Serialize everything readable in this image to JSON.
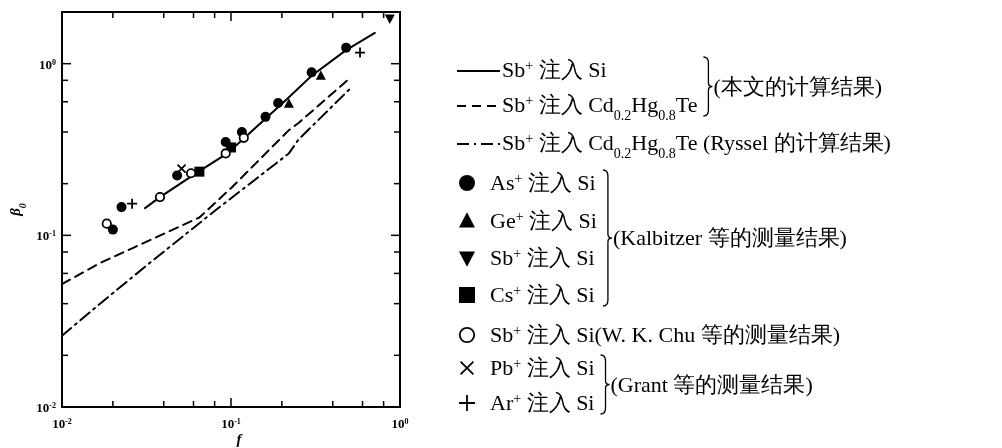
{
  "chart_data": {
    "type": "scatter",
    "xlabel": "f",
    "ylabel": "β$_{0}$",
    "log": "xy",
    "legend": "right",
    "grid": false,
    "xlim": [
      0.01,
      1
    ],
    "ylim": [
      0.01,
      2
    ],
    "xticks": [
      {
        "value": 0.01,
        "label": "10$^{-2}$"
      },
      {
        "value": 0.02,
        "label": null
      },
      {
        "value": 0.04,
        "label": null
      },
      {
        "value": 0.06,
        "label": null
      },
      {
        "value": 0.08,
        "label": null
      },
      {
        "value": 0.1,
        "label": "10$^{-1}$"
      },
      {
        "value": 0.2,
        "label": null
      },
      {
        "value": 0.4,
        "label": null
      },
      {
        "value": 0.6,
        "label": null
      },
      {
        "value": 0.8,
        "label": null
      },
      {
        "value": 1,
        "label": "10$^{0}$"
      }
    ],
    "yticks": [
      {
        "value": 0.01,
        "label": "10$^{-2}$"
      },
      {
        "value": 0.02,
        "label": null
      },
      {
        "value": 0.04,
        "label": null
      },
      {
        "value": 0.06,
        "label": null
      },
      {
        "value": 0.08,
        "label": null
      },
      {
        "value": 0.1,
        "label": "10$^{-1}$"
      },
      {
        "value": 0.2,
        "label": null
      },
      {
        "value": 0.4,
        "label": null
      },
      {
        "value": 0.6,
        "label": null
      },
      {
        "value": 0.8,
        "label": null
      },
      {
        "value": 1,
        "label": "10$^{0}$"
      }
    ],
    "series": [
      {
        "name": "Sb$^{+}$ 注入 Si",
        "type": "line",
        "line_style": "solid",
        "marker": "none",
        "color": "#000000",
        "x": [
          0.031,
          0.038,
          0.06,
          0.095,
          0.21,
          0.3,
          0.48,
          0.71
        ],
        "values": [
          0.144,
          0.167,
          0.225,
          0.3,
          0.61,
          0.85,
          1.2,
          1.51
        ]
      },
      {
        "name": "Sb$^{+}$ 注入 Cd$_{0.2}$Hg$_{0.8}$Te",
        "type": "line",
        "line_style": "dashed",
        "marker": "none",
        "color": "#000000",
        "x": [
          0.01,
          0.0168,
          0.026,
          0.065,
          0.101,
          0.22,
          0.25,
          0.51
        ],
        "values": [
          0.052,
          0.069,
          0.084,
          0.127,
          0.19,
          0.41,
          0.45,
          0.83
        ]
      },
      {
        "name": "Sb$^{+}$ 注入 Cd$_{0.2}$Hg$_{0.8}$Te (Ryssel 的计算结果)",
        "type": "line",
        "line_style": "dashdot",
        "marker": "none",
        "color": "#000000",
        "x": [
          0.01,
          0.0168,
          0.033,
          0.081,
          0.22,
          0.25,
          0.51
        ],
        "values": [
          0.026,
          0.04,
          0.069,
          0.14,
          0.3,
          0.36,
          0.72
        ]
      },
      {
        "name": "As$^{+}$ 注入 Si",
        "marker": "circle",
        "color": "#000000",
        "x": [
          0.02,
          0.0225,
          0.048,
          0.093,
          0.116,
          0.16,
          0.19,
          0.3,
          0.48
        ],
        "values": [
          0.108,
          0.146,
          0.223,
          0.35,
          0.4,
          0.49,
          0.59,
          0.89,
          1.24
        ]
      },
      {
        "name": "Ge$^{+}$ 注入 Si",
        "marker": "triangle",
        "color": "#000000",
        "x": [
          0.22,
          0.34
        ],
        "values": [
          0.585,
          0.85
        ]
      },
      {
        "name": "Sb$^{+}$ 注入 Si",
        "marker": "triangle-down",
        "color": "#000000",
        "x": [
          0.87
        ],
        "values": [
          1.83
        ]
      },
      {
        "name": "Cs$^{+}$ 注入 Si",
        "marker": "square",
        "color": "#000000",
        "x": [
          0.065,
          0.1
        ],
        "values": [
          0.235,
          0.325
        ]
      },
      {
        "name": "Sb$^{+}$ 注入 Si(W. K. Chu 等的测量结果)",
        "marker": "circle-open",
        "color": "#000000",
        "x": [
          0.0184,
          0.038,
          0.058,
          0.093,
          0.119
        ],
        "values": [
          0.117,
          0.167,
          0.23,
          0.3,
          0.37
        ]
      },
      {
        "name": "Pb$^{+}$ 注入 Si",
        "marker": "cross",
        "color": "#000000",
        "x": [
          0.051
        ],
        "values": [
          0.245
        ]
      },
      {
        "name": "Ar$^{+}$ 注入 Si",
        "marker": "plus",
        "color": "#000000",
        "x": [
          0.026,
          0.58
        ],
        "values": [
          0.153,
          1.16
        ]
      }
    ],
    "annotations": [
      "(本文的计算结果)",
      "(Kalbitzer 等的测量结果)",
      "(Grant 等的测量结果)"
    ]
  }
}
